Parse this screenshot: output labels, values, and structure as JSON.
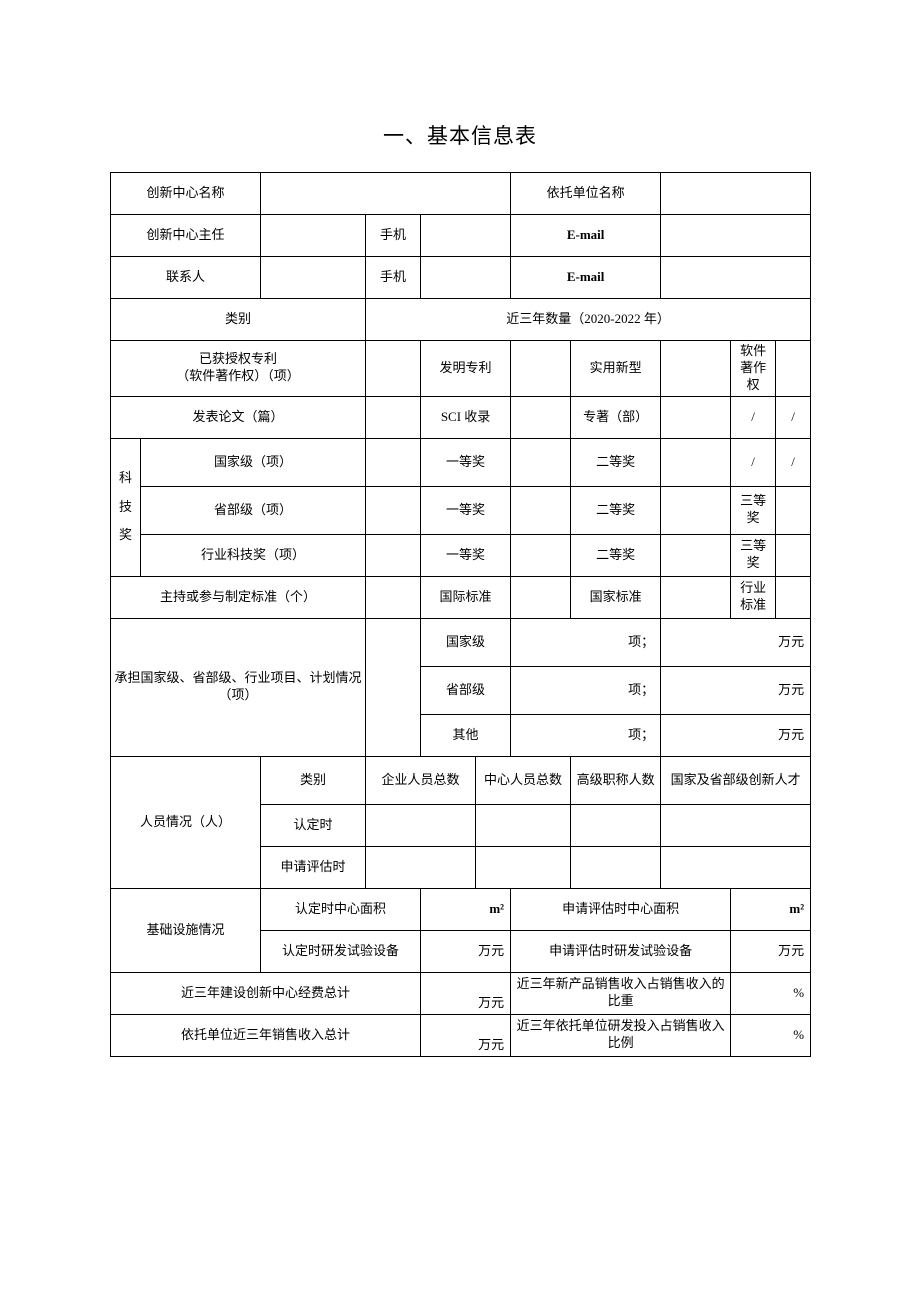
{
  "title": "一、基本信息表",
  "rows": {
    "r1": {
      "c1": "创新中心名称",
      "c2": "",
      "c3": "依托单位名称",
      "c4": ""
    },
    "r2": {
      "c1": "创新中心主任",
      "c2": "",
      "c3": "手机",
      "c4": "",
      "c5": "E-mail",
      "c6": ""
    },
    "r3": {
      "c1": "联系人",
      "c2": "",
      "c3": "手机",
      "c4": "",
      "c5": "E-mail",
      "c6": ""
    },
    "r4": {
      "c1": "类别",
      "c2": "近三年数量（2020-2022 年）"
    },
    "r5": {
      "c1": "已获授权专利\n（软件著作权）（项）",
      "c2": "",
      "c3": "发明专利",
      "c4": "",
      "c5": "实用新型",
      "c6": "",
      "c7": "软件著作权",
      "c8": ""
    },
    "r6": {
      "c1": "发表论文（篇）",
      "c2": "",
      "c3": "SCI 收录",
      "c4": "",
      "c5": "专著（部）",
      "c6": "",
      "c7": "/",
      "c8": "/"
    },
    "r7": {
      "c0": "科技奖",
      "c1": "国家级（项）",
      "c2": "",
      "c3": "一等奖",
      "c4": "",
      "c5": "二等奖",
      "c6": "",
      "c7": "/",
      "c8": "/"
    },
    "r8": {
      "c1": "省部级（项）",
      "c2": "",
      "c3": "一等奖",
      "c4": "",
      "c5": "二等奖",
      "c6": "",
      "c7": "三等奖",
      "c8": ""
    },
    "r9": {
      "c1": "行业科技奖（项）",
      "c2": "",
      "c3": "一等奖",
      "c4": "",
      "c5": "二等奖",
      "c6": "",
      "c7": "三等奖",
      "c8": ""
    },
    "r10": {
      "c1": "主持或参与制定标准（个）",
      "c2": "",
      "c3": "国际标准",
      "c4": "",
      "c5": "国家标准",
      "c6": "",
      "c7": "行业标准",
      "c8": ""
    },
    "r11": {
      "c1": "承担国家级、省部级、行业项目、计划情况（项）",
      "c2": "",
      "c3": "国家级",
      "c4": "项；",
      "c5": "万元"
    },
    "r12": {
      "c3": "省部级",
      "c4": "项；",
      "c5": "万元"
    },
    "r13": {
      "c3": "其他",
      "c4": "项；",
      "c5": "万元"
    },
    "r14": {
      "c1": "人员情况（人）",
      "c2": "类别",
      "c3": "企业人员总数",
      "c4": "中心人员总数",
      "c5": "高级职称人数",
      "c6": "国家及省部级创新人才"
    },
    "r15": {
      "c2": "认定时",
      "c3": "",
      "c4": "",
      "c5": "",
      "c6": ""
    },
    "r16": {
      "c2": "申请评估时",
      "c3": "",
      "c4": "",
      "c5": "",
      "c6": ""
    },
    "r17": {
      "c1": "基础设施情况",
      "c2": "认定时中心面积",
      "c3": "m²",
      "c4": "申请评估时中心面积",
      "c5": "m²"
    },
    "r18": {
      "c2": "认定时研发试验设备",
      "c3": "万元",
      "c4": "申请评估时研发试验设备",
      "c5": "万元"
    },
    "r19": {
      "c1": "近三年建设创新中心经费总计",
      "c2": "万元",
      "c3": "近三年新产品销售收入占销售收入的比重",
      "c4": "%"
    },
    "r20": {
      "c1": "依托单位近三年销售收入总计",
      "c2": "万元",
      "c3": "近三年依托单位研发投入占销售收入比例",
      "c4": "%"
    }
  }
}
